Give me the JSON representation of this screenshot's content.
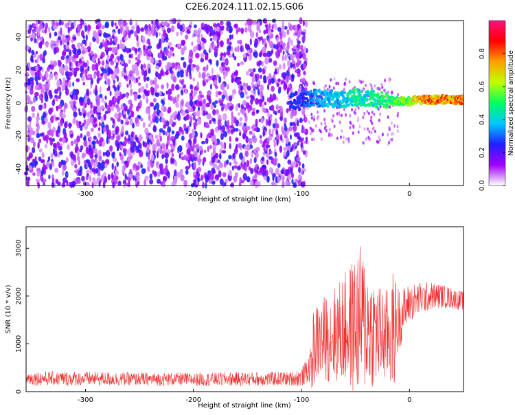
{
  "title": "C2E6.2024.111.02.15.G06",
  "chart_data": [
    {
      "type": "heatmap",
      "xlabel": "Height of straight line (km)",
      "ylabel": "Frequency (Hz)",
      "xlim": [
        -355,
        50
      ],
      "ylim": [
        -50,
        50
      ],
      "xticks": [
        -300,
        -200,
        -100,
        0
      ],
      "yticks": [
        -40,
        -20,
        0,
        20,
        40
      ],
      "colorbar": {
        "label": "Normalized spectral amplitude",
        "range": [
          0,
          1
        ],
        "ticks": [
          0.0,
          0.2,
          0.4,
          0.6,
          0.8
        ],
        "colors": [
          "#ffffff",
          "#a000ff",
          "#2020ff",
          "#00c8ff",
          "#00ff60",
          "#c0ff00",
          "#ffa000",
          "#ff0000",
          "#ff1080"
        ]
      },
      "signal_track": {
        "x": [
          -110,
          -100,
          -90,
          -80,
          -70,
          -60,
          -50,
          -40,
          -30,
          -20,
          -10,
          0,
          10,
          20,
          30,
          40,
          50
        ],
        "y": [
          1,
          2,
          3,
          3,
          2.5,
          2.5,
          3.5,
          3,
          2,
          1.5,
          1,
          1,
          2,
          2,
          2,
          2,
          2
        ],
        "amplitude": [
          0.3,
          0.3,
          0.35,
          0.4,
          0.45,
          0.45,
          0.55,
          0.5,
          0.55,
          0.6,
          0.65,
          0.7,
          0.85,
          0.9,
          0.9,
          0.9,
          0.9
        ]
      }
    },
    {
      "type": "line",
      "xlabel": "Height of straight line (km)",
      "ylabel": "SNR (10 * v/v)",
      "xlim": [
        -355,
        50
      ],
      "ylim": [
        0,
        3450
      ],
      "xticks": [
        -300,
        -200,
        -100,
        0
      ],
      "yticks": [
        0,
        1000,
        2000,
        3000
      ],
      "color": "#f03030",
      "series": [
        {
          "x": [
            -355,
            -300,
            -250,
            -200,
            -150,
            -110,
            -100,
            -92,
            -90,
            -88,
            -80,
            -70,
            -60,
            -50,
            -45,
            -40,
            -30,
            -20,
            -15,
            -10,
            -5,
            0,
            10,
            20,
            30,
            40,
            50
          ],
          "y": [
            280,
            270,
            260,
            255,
            265,
            270,
            300,
            500,
            700,
            1000,
            1100,
            1200,
            1300,
            1400,
            1500,
            1400,
            1200,
            1150,
            1250,
            1500,
            1700,
            1850,
            1950,
            2000,
            2000,
            1950,
            1900
          ],
          "spread": [
            150,
            150,
            140,
            140,
            150,
            150,
            200,
            300,
            900,
            800,
            900,
            1000,
            1200,
            1500,
            1600,
            1400,
            1100,
            1000,
            1300,
            700,
            500,
            400,
            350,
            300,
            250,
            220,
            200
          ]
        }
      ]
    }
  ]
}
